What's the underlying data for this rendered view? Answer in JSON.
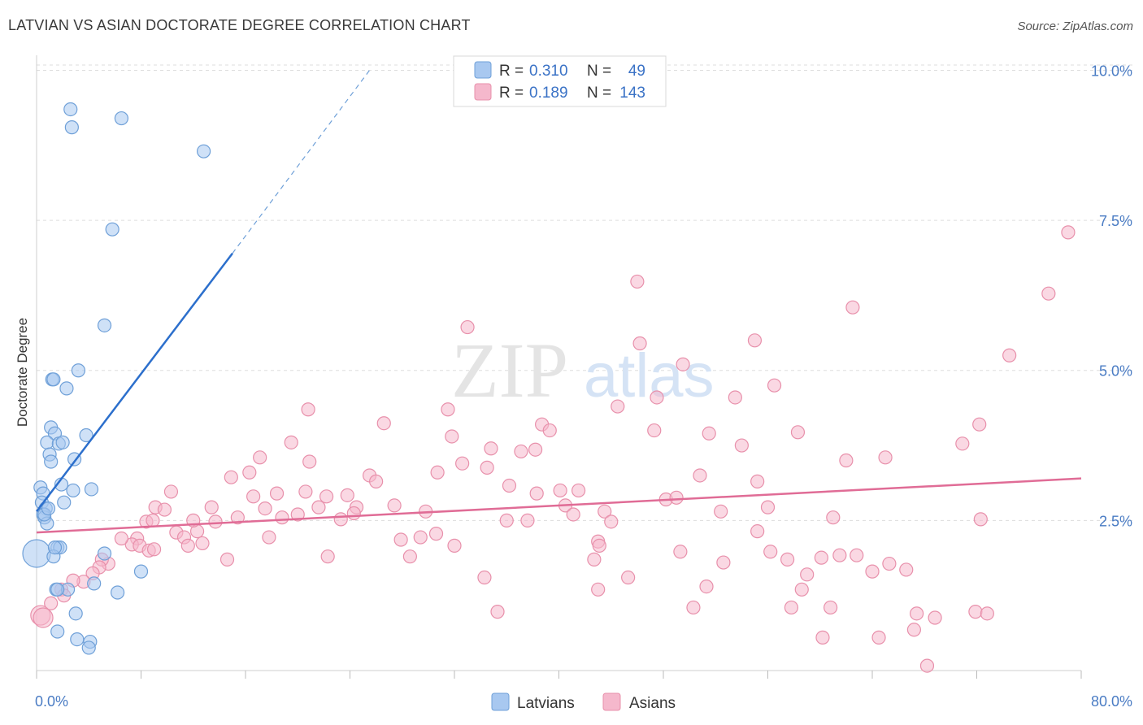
{
  "title": "LATVIAN VS ASIAN DOCTORATE DEGREE CORRELATION CHART",
  "source": "Source: ZipAtlas.com",
  "watermark": {
    "zip": "ZIP",
    "atlas": "atlas"
  },
  "colors": {
    "blue_fill": "#a8c8f0",
    "blue_stroke": "#6fa0d8",
    "blue_line": "#2c6fcc",
    "pink_fill": "#f5b8cc",
    "pink_stroke": "#e890ab",
    "pink_line": "#e06c96",
    "axis_text": "#4a7cc4",
    "grid": "#dddddd"
  },
  "legend": {
    "rows": [
      {
        "r_label": "R =",
        "r_value": "0.310",
        "n_label": "N =",
        "n_value": "49"
      },
      {
        "r_label": "R =",
        "r_value": "0.189",
        "n_label": "N =",
        "n_value": "143"
      }
    ]
  },
  "chart_data": {
    "type": "scatter",
    "title": "LATVIAN VS ASIAN DOCTORATE DEGREE CORRELATION CHART",
    "xlabel": "",
    "ylabel": "Doctorate Degree",
    "xlim": [
      0,
      80
    ],
    "ylim": [
      0,
      10.25
    ],
    "x_tick_labels": [
      "0.0%",
      "80.0%"
    ],
    "y_ticks": [
      2.5,
      5.0,
      7.5,
      10.0
    ],
    "y_tick_labels": [
      "2.5%",
      "5.0%",
      "7.5%",
      "10.0%"
    ],
    "grid": true,
    "legend_position": "bottom",
    "series": [
      {
        "name": "Latvians",
        "r": 0.31,
        "n": 49,
        "trend": {
          "x0": 0.0,
          "y0": 2.65,
          "x1": 15.0,
          "y1": 6.95,
          "dash_to_x": 25.5,
          "dash_to_y": 10.0
        },
        "points": [
          [
            2.6,
            9.35
          ],
          [
            2.7,
            9.05
          ],
          [
            6.5,
            9.2
          ],
          [
            12.8,
            8.65
          ],
          [
            5.8,
            7.35
          ],
          [
            5.2,
            5.75
          ],
          [
            1.2,
            4.85
          ],
          [
            1.3,
            4.85
          ],
          [
            2.3,
            4.7
          ],
          [
            3.2,
            5.0
          ],
          [
            1.1,
            4.05
          ],
          [
            1.4,
            3.95
          ],
          [
            3.8,
            3.92
          ],
          [
            0.8,
            3.8
          ],
          [
            1.7,
            3.78
          ],
          [
            2.0,
            3.8
          ],
          [
            1.0,
            3.6
          ],
          [
            2.9,
            3.52
          ],
          [
            1.1,
            3.48
          ],
          [
            0.3,
            3.05
          ],
          [
            0.5,
            2.95
          ],
          [
            1.9,
            3.1
          ],
          [
            2.8,
            3.0
          ],
          [
            4.2,
            3.02
          ],
          [
            0.4,
            2.8
          ],
          [
            0.7,
            2.7
          ],
          [
            2.1,
            2.8
          ],
          [
            0.5,
            2.6
          ],
          [
            0.6,
            2.55
          ],
          [
            0.8,
            2.45
          ],
          [
            0.0,
            1.95
          ],
          [
            1.6,
            2.05
          ],
          [
            1.8,
            2.05
          ],
          [
            5.2,
            1.95
          ],
          [
            1.3,
            1.9
          ],
          [
            8.0,
            1.65
          ],
          [
            4.4,
            1.45
          ],
          [
            1.5,
            1.35
          ],
          [
            2.4,
            1.35
          ],
          [
            6.2,
            1.3
          ],
          [
            1.6,
            1.35
          ],
          [
            3.0,
            0.95
          ],
          [
            1.6,
            0.65
          ],
          [
            3.1,
            0.52
          ],
          [
            4.1,
            0.48
          ],
          [
            4.0,
            0.38
          ],
          [
            0.6,
            2.6
          ],
          [
            0.9,
            2.7
          ],
          [
            1.4,
            2.05
          ]
        ]
      },
      {
        "name": "Asians",
        "r": 0.189,
        "n": 143,
        "trend": {
          "x0": 0.0,
          "y0": 2.3,
          "x1": 80.0,
          "y1": 3.2
        },
        "points": [
          [
            79.0,
            7.3
          ],
          [
            46.0,
            6.48
          ],
          [
            62.5,
            6.05
          ],
          [
            77.5,
            6.28
          ],
          [
            33.0,
            5.72
          ],
          [
            46.2,
            5.45
          ],
          [
            55.0,
            5.5
          ],
          [
            49.5,
            5.1
          ],
          [
            74.5,
            5.25
          ],
          [
            47.5,
            4.55
          ],
          [
            53.5,
            4.55
          ],
          [
            56.5,
            4.75
          ],
          [
            44.5,
            4.4
          ],
          [
            31.5,
            4.35
          ],
          [
            20.8,
            4.35
          ],
          [
            26.6,
            4.12
          ],
          [
            38.7,
            4.1
          ],
          [
            39.3,
            4.0
          ],
          [
            47.3,
            4.0
          ],
          [
            51.5,
            3.95
          ],
          [
            58.3,
            3.97
          ],
          [
            72.2,
            4.1
          ],
          [
            31.8,
            3.9
          ],
          [
            19.5,
            3.8
          ],
          [
            54.0,
            3.75
          ],
          [
            34.8,
            3.7
          ],
          [
            37.1,
            3.65
          ],
          [
            38.2,
            3.68
          ],
          [
            70.9,
            3.78
          ],
          [
            17.1,
            3.55
          ],
          [
            20.9,
            3.48
          ],
          [
            32.6,
            3.45
          ],
          [
            34.5,
            3.38
          ],
          [
            62.0,
            3.5
          ],
          [
            65.0,
            3.55
          ],
          [
            14.9,
            3.22
          ],
          [
            16.3,
            3.3
          ],
          [
            25.5,
            3.25
          ],
          [
            26.0,
            3.15
          ],
          [
            30.7,
            3.3
          ],
          [
            50.8,
            3.25
          ],
          [
            55.2,
            3.15
          ],
          [
            10.3,
            2.98
          ],
          [
            16.6,
            2.9
          ],
          [
            18.4,
            2.95
          ],
          [
            20.6,
            2.98
          ],
          [
            22.2,
            2.9
          ],
          [
            23.8,
            2.92
          ],
          [
            36.2,
            3.08
          ],
          [
            38.3,
            2.95
          ],
          [
            40.1,
            3.0
          ],
          [
            41.5,
            3.0
          ],
          [
            48.2,
            2.85
          ],
          [
            49.0,
            2.88
          ],
          [
            9.1,
            2.72
          ],
          [
            9.8,
            2.68
          ],
          [
            13.4,
            2.72
          ],
          [
            21.6,
            2.72
          ],
          [
            24.5,
            2.72
          ],
          [
            27.4,
            2.75
          ],
          [
            29.8,
            2.65
          ],
          [
            40.5,
            2.75
          ],
          [
            43.5,
            2.65
          ],
          [
            52.4,
            2.65
          ],
          [
            56.0,
            2.72
          ],
          [
            8.4,
            2.48
          ],
          [
            8.9,
            2.5
          ],
          [
            13.7,
            2.48
          ],
          [
            15.4,
            2.55
          ],
          [
            18.8,
            2.55
          ],
          [
            20.0,
            2.6
          ],
          [
            23.3,
            2.52
          ],
          [
            24.3,
            2.62
          ],
          [
            36.0,
            2.5
          ],
          [
            37.6,
            2.5
          ],
          [
            41.1,
            2.6
          ],
          [
            44.0,
            2.48
          ],
          [
            61.0,
            2.55
          ],
          [
            72.3,
            2.52
          ],
          [
            10.7,
            2.3
          ],
          [
            11.3,
            2.22
          ],
          [
            12.3,
            2.32
          ],
          [
            17.8,
            2.22
          ],
          [
            27.9,
            2.18
          ],
          [
            29.4,
            2.22
          ],
          [
            30.6,
            2.28
          ],
          [
            43.0,
            2.15
          ],
          [
            55.2,
            2.32
          ],
          [
            7.7,
            2.2
          ],
          [
            7.3,
            2.1
          ],
          [
            7.9,
            2.08
          ],
          [
            11.6,
            2.08
          ],
          [
            12.7,
            2.12
          ],
          [
            8.6,
            2.0
          ],
          [
            9.0,
            2.02
          ],
          [
            28.6,
            1.9
          ],
          [
            32.0,
            2.08
          ],
          [
            43.1,
            2.08
          ],
          [
            49.3,
            1.98
          ],
          [
            56.2,
            1.98
          ],
          [
            14.6,
            1.85
          ],
          [
            22.3,
            1.9
          ],
          [
            42.7,
            1.85
          ],
          [
            57.5,
            1.85
          ],
          [
            60.1,
            1.88
          ],
          [
            61.5,
            1.92
          ],
          [
            62.8,
            1.92
          ],
          [
            5.5,
            1.78
          ],
          [
            5.0,
            1.85
          ],
          [
            4.8,
            1.72
          ],
          [
            52.6,
            1.8
          ],
          [
            59.0,
            1.6
          ],
          [
            64.0,
            1.65
          ],
          [
            65.3,
            1.78
          ],
          [
            66.6,
            1.68
          ],
          [
            4.3,
            1.62
          ],
          [
            3.6,
            1.48
          ],
          [
            2.8,
            1.5
          ],
          [
            1.9,
            1.35
          ],
          [
            34.3,
            1.55
          ],
          [
            45.3,
            1.55
          ],
          [
            2.1,
            1.25
          ],
          [
            43.0,
            1.35
          ],
          [
            51.3,
            1.4
          ],
          [
            58.6,
            1.35
          ],
          [
            1.1,
            1.12
          ],
          [
            35.3,
            0.98
          ],
          [
            50.3,
            1.05
          ],
          [
            57.8,
            1.05
          ],
          [
            60.8,
            1.05
          ],
          [
            0.3,
            0.92
          ],
          [
            0.5,
            0.88
          ],
          [
            67.4,
            0.95
          ],
          [
            71.9,
            0.98
          ],
          [
            72.8,
            0.95
          ],
          [
            60.2,
            0.55
          ],
          [
            64.5,
            0.55
          ],
          [
            68.8,
            0.88
          ],
          [
            67.2,
            0.68
          ],
          [
            68.2,
            0.08
          ],
          [
            6.5,
            2.2
          ],
          [
            17.5,
            2.7
          ],
          [
            12.0,
            2.5
          ]
        ]
      }
    ]
  }
}
